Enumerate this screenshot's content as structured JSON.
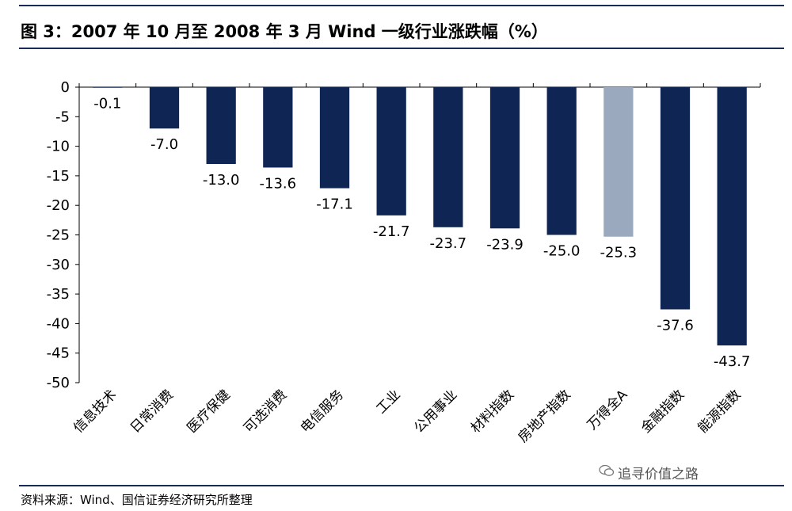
{
  "title": "图 3：2007 年 10 月至 2008 年 3 月 Wind 一级行业涨跌幅（%）",
  "source": "资料来源：Wind、国信证券经济研究所整理",
  "watermark": "追寻价值之路",
  "colors": {
    "bar": "#0f2553",
    "highlight": "#9aa9bd",
    "rule": "#1a2b57"
  },
  "chart_data": {
    "type": "bar",
    "title": "",
    "xlabel": "",
    "ylabel": "",
    "ylim": [
      -50,
      0
    ],
    "yticks": [
      0,
      -5,
      -10,
      -15,
      -20,
      -25,
      -30,
      -35,
      -40,
      -45,
      -50
    ],
    "grid": false,
    "categories": [
      "信息技术",
      "日常消费",
      "医疗保健",
      "可选消费",
      "电信服务",
      "工业",
      "公用事业",
      "材料指数",
      "房地产指数",
      "万得全A",
      "金融指数",
      "能源指数"
    ],
    "values": [
      -0.1,
      -7.0,
      -13.0,
      -13.6,
      -17.1,
      -21.7,
      -23.7,
      -23.9,
      -25.0,
      -25.3,
      -37.6,
      -43.7
    ],
    "labels": [
      "-0.1",
      "-7.0",
      "-13.0",
      "-13.6",
      "-17.1",
      "-21.7",
      "-23.7",
      "-23.9",
      "-25.0",
      "-25.3",
      "-37.6",
      "-43.7"
    ],
    "highlight_category": "万得全A"
  }
}
